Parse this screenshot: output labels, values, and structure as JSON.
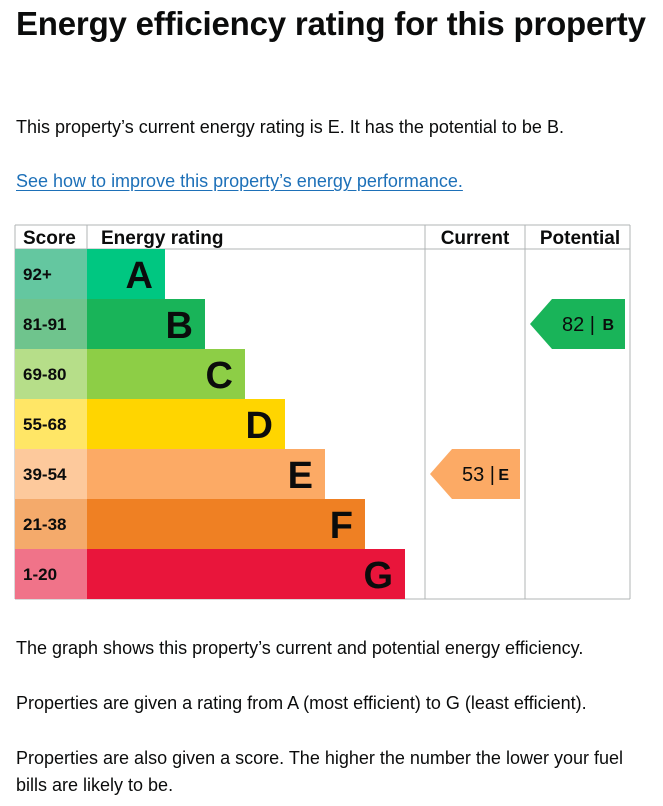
{
  "title": "Energy efficiency rating for this property",
  "summary": "This property’s current energy rating is E. It has the potential to be B.",
  "improve_link": "See how to improve this property’s energy performance.",
  "notes": [
    "The graph shows this property’s current and potential energy efficiency.",
    "Properties are given a rating from A (most efficient) to G (least efficient).",
    "Properties are also given a score. The higher the number the lower your fuel bills are likely to be."
  ],
  "chart_data": {
    "type": "bar",
    "headers": {
      "score": "Score",
      "rating": "Energy rating",
      "current": "Current",
      "potential": "Potential"
    },
    "bands": [
      {
        "letter": "A",
        "range": "92+",
        "color": "#00c781",
        "range_color": "#64c7a0"
      },
      {
        "letter": "B",
        "range": "81-91",
        "color": "#19b459",
        "range_color": "#6fc48d"
      },
      {
        "letter": "C",
        "range": "69-80",
        "color": "#8dce46",
        "range_color": "#b6de89"
      },
      {
        "letter": "D",
        "range": "55-68",
        "color": "#ffd500",
        "range_color": "#ffe666"
      },
      {
        "letter": "E",
        "range": "39-54",
        "color": "#fcaa65",
        "range_color": "#fdc99c"
      },
      {
        "letter": "F",
        "range": "21-38",
        "color": "#ef8023",
        "range_color": "#f4aa6b"
      },
      {
        "letter": "G",
        "range": "1-20",
        "color": "#e9153b",
        "range_color": "#f07389"
      }
    ],
    "current": {
      "score": 53,
      "score_text": "53 |",
      "letter": "E",
      "color": "#fcaa65"
    },
    "potential": {
      "score": 82,
      "score_text": "82 |",
      "letter": "B",
      "color": "#19b459"
    }
  }
}
